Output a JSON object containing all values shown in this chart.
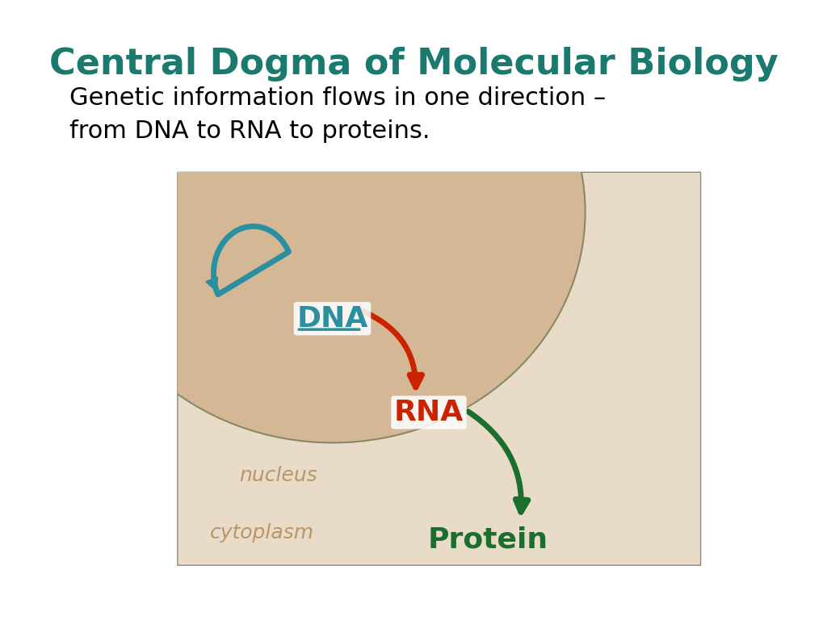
{
  "title": "Central Dogma of Molecular Biology",
  "title_color": "#1a7a6e",
  "subtitle": "Genetic information flows in one direction –\nfrom DNA to RNA to proteins.",
  "subtitle_color": "#000000",
  "bg_color": "#ffffff",
  "nucleus_color": "#d4b896",
  "cytoplasm_color": "#e8dcc8",
  "dna_label": "DNA",
  "dna_color": "#2a8fa0",
  "rna_label": "RNA",
  "rna_color": "#cc2200",
  "protein_label": "Protein",
  "protein_color": "#1a6e2e",
  "nucleus_text": "nucleus",
  "nucleus_text_color": "#b8956a",
  "cytoplasm_text": "cytoplasm",
  "cytoplasm_text_color": "#b8956a",
  "replication_arrow_color": "#2a8fa0",
  "transcription_arrow_color": "#cc2200",
  "translation_arrow_color": "#1a6e2e"
}
